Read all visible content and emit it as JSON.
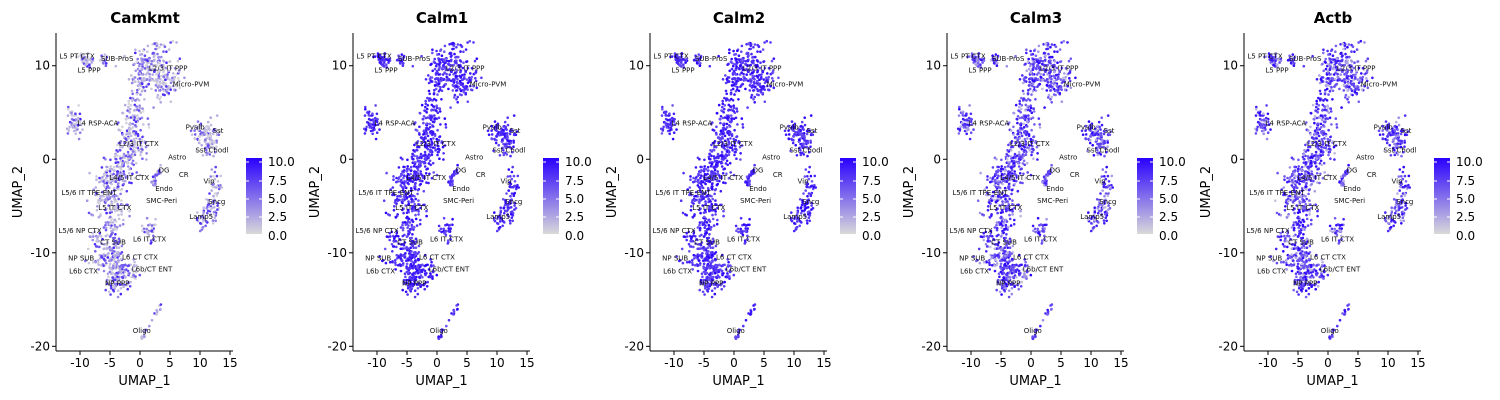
{
  "chart_data": {
    "type": "scatter",
    "plot_kind": "UMAP feature plot",
    "xlabel": "UMAP_1",
    "ylabel": "UMAP_2",
    "xlim": [
      -14,
      15.5
    ],
    "ylim": [
      -20.5,
      13.5
    ],
    "xticks": [
      -10,
      -5,
      0,
      5,
      10,
      15
    ],
    "yticks": [
      -20,
      -10,
      0,
      10
    ],
    "color_scale": {
      "low_color": "#d9d9d9",
      "high_color": "#2a00ff",
      "ticks": [
        "10.0",
        "7.5",
        "5.0",
        "2.5",
        "0.0"
      ]
    },
    "panels": [
      {
        "title": "Camkmt",
        "mode": "sparse"
      },
      {
        "title": "Calm1",
        "mode": "dense"
      },
      {
        "title": "Calm2",
        "mode": "dense"
      },
      {
        "title": "Calm3",
        "mode": "medium"
      },
      {
        "title": "Actb",
        "mode": "medium"
      }
    ],
    "clusters": [
      {
        "label": "L5 PT CTX",
        "x": -10.5,
        "y": 10.8
      },
      {
        "label": "SUB-ProS",
        "x": -3.8,
        "y": 10.5
      },
      {
        "label": "L5 PPP",
        "x": -8.5,
        "y": 9.3
      },
      {
        "label": "L2/3 IT PPP",
        "x": 4.7,
        "y": 9.5
      },
      {
        "label": "Micro-PVM",
        "x": 8.5,
        "y": 7.8
      },
      {
        "label": "L4 RSP-ACA",
        "x": -7.0,
        "y": 3.6
      },
      {
        "label": "Pvalb",
        "x": 9.2,
        "y": 3.2
      },
      {
        "label": "Sst",
        "x": 13.0,
        "y": 2.8
      },
      {
        "label": "Sst Chodl",
        "x": 12.0,
        "y": 0.7
      },
      {
        "label": "L2/3 IT CTX",
        "x": -0.2,
        "y": 1.4
      },
      {
        "label": "Astro",
        "x": 6.2,
        "y": 0.0
      },
      {
        "label": "DG",
        "x": 4.0,
        "y": -1.4
      },
      {
        "label": "CR",
        "x": 7.3,
        "y": -1.9
      },
      {
        "label": "L4/5 IT CTX",
        "x": -1.8,
        "y": -2.2
      },
      {
        "label": "Endo",
        "x": 4.0,
        "y": -3.4
      },
      {
        "label": "Vip",
        "x": 11.5,
        "y": -2.6
      },
      {
        "label": "L5/6 IT TPE-ENT",
        "x": -8.5,
        "y": -3.8
      },
      {
        "label": "SMC-Peri",
        "x": 3.6,
        "y": -4.7
      },
      {
        "label": "Sncg",
        "x": 12.8,
        "y": -4.8
      },
      {
        "label": "L5 IT CTX",
        "x": -4.2,
        "y": -5.4
      },
      {
        "label": "Lamp5",
        "x": 10.2,
        "y": -6.4
      },
      {
        "label": "L6 IT CTX",
        "x": 1.6,
        "y": -8.8
      },
      {
        "label": "L5/6 NP CTX",
        "x": -10.0,
        "y": -7.9
      },
      {
        "label": "CT SUB",
        "x": -4.5,
        "y": -9.1
      },
      {
        "label": "NP SUB",
        "x": -9.8,
        "y": -10.8
      },
      {
        "label": "L6 CT CTX",
        "x": 0.0,
        "y": -10.7
      },
      {
        "label": "L6b CTX",
        "x": -9.4,
        "y": -12.2
      },
      {
        "label": "L6b/CT ENT",
        "x": 2.0,
        "y": -12.0
      },
      {
        "label": "NP PPP",
        "x": -3.8,
        "y": -13.5
      },
      {
        "label": "Oligo",
        "x": 0.3,
        "y": -18.6
      }
    ]
  }
}
